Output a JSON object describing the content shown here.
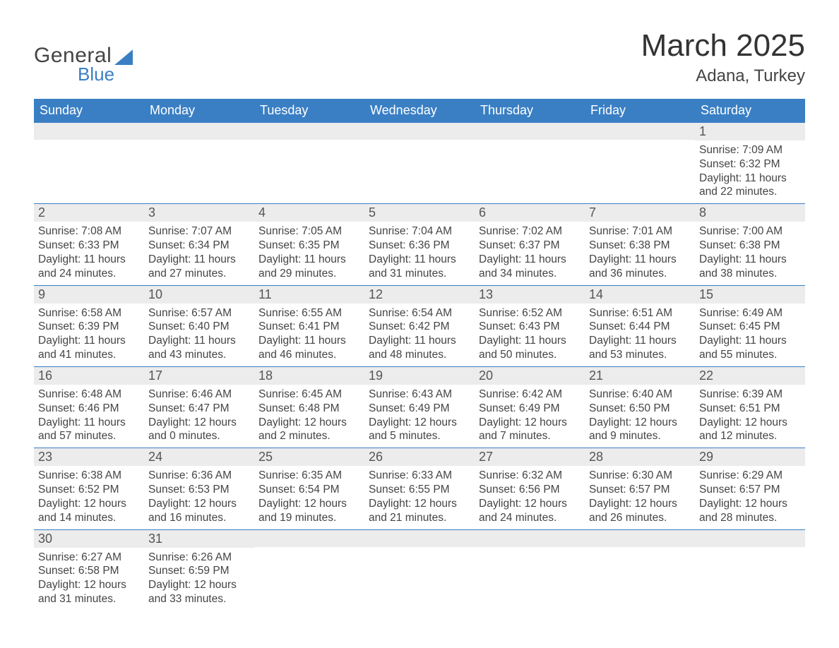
{
  "logo": {
    "word1": "General",
    "word2": "Blue"
  },
  "title": "March 2025",
  "location": "Adana, Turkey",
  "colors": {
    "header_bg": "#3a7fc4",
    "header_text": "#ffffff",
    "band_bg": "#ececec",
    "text": "#444444",
    "rule": "#3a7fc4"
  },
  "fonts": {
    "title_pt": 44,
    "location_pt": 24,
    "dow_pt": 18,
    "daynum_pt": 18,
    "body_pt": 15.5
  },
  "days_of_week": [
    "Sunday",
    "Monday",
    "Tuesday",
    "Wednesday",
    "Thursday",
    "Friday",
    "Saturday"
  ],
  "weeks": [
    [
      null,
      null,
      null,
      null,
      null,
      null,
      {
        "n": "1",
        "sunrise": "Sunrise: 7:09 AM",
        "sunset": "Sunset: 6:32 PM",
        "daylight": "Daylight: 11 hours and 22 minutes."
      }
    ],
    [
      {
        "n": "2",
        "sunrise": "Sunrise: 7:08 AM",
        "sunset": "Sunset: 6:33 PM",
        "daylight": "Daylight: 11 hours and 24 minutes."
      },
      {
        "n": "3",
        "sunrise": "Sunrise: 7:07 AM",
        "sunset": "Sunset: 6:34 PM",
        "daylight": "Daylight: 11 hours and 27 minutes."
      },
      {
        "n": "4",
        "sunrise": "Sunrise: 7:05 AM",
        "sunset": "Sunset: 6:35 PM",
        "daylight": "Daylight: 11 hours and 29 minutes."
      },
      {
        "n": "5",
        "sunrise": "Sunrise: 7:04 AM",
        "sunset": "Sunset: 6:36 PM",
        "daylight": "Daylight: 11 hours and 31 minutes."
      },
      {
        "n": "6",
        "sunrise": "Sunrise: 7:02 AM",
        "sunset": "Sunset: 6:37 PM",
        "daylight": "Daylight: 11 hours and 34 minutes."
      },
      {
        "n": "7",
        "sunrise": "Sunrise: 7:01 AM",
        "sunset": "Sunset: 6:38 PM",
        "daylight": "Daylight: 11 hours and 36 minutes."
      },
      {
        "n": "8",
        "sunrise": "Sunrise: 7:00 AM",
        "sunset": "Sunset: 6:38 PM",
        "daylight": "Daylight: 11 hours and 38 minutes."
      }
    ],
    [
      {
        "n": "9",
        "sunrise": "Sunrise: 6:58 AM",
        "sunset": "Sunset: 6:39 PM",
        "daylight": "Daylight: 11 hours and 41 minutes."
      },
      {
        "n": "10",
        "sunrise": "Sunrise: 6:57 AM",
        "sunset": "Sunset: 6:40 PM",
        "daylight": "Daylight: 11 hours and 43 minutes."
      },
      {
        "n": "11",
        "sunrise": "Sunrise: 6:55 AM",
        "sunset": "Sunset: 6:41 PM",
        "daylight": "Daylight: 11 hours and 46 minutes."
      },
      {
        "n": "12",
        "sunrise": "Sunrise: 6:54 AM",
        "sunset": "Sunset: 6:42 PM",
        "daylight": "Daylight: 11 hours and 48 minutes."
      },
      {
        "n": "13",
        "sunrise": "Sunrise: 6:52 AM",
        "sunset": "Sunset: 6:43 PM",
        "daylight": "Daylight: 11 hours and 50 minutes."
      },
      {
        "n": "14",
        "sunrise": "Sunrise: 6:51 AM",
        "sunset": "Sunset: 6:44 PM",
        "daylight": "Daylight: 11 hours and 53 minutes."
      },
      {
        "n": "15",
        "sunrise": "Sunrise: 6:49 AM",
        "sunset": "Sunset: 6:45 PM",
        "daylight": "Daylight: 11 hours and 55 minutes."
      }
    ],
    [
      {
        "n": "16",
        "sunrise": "Sunrise: 6:48 AM",
        "sunset": "Sunset: 6:46 PM",
        "daylight": "Daylight: 11 hours and 57 minutes."
      },
      {
        "n": "17",
        "sunrise": "Sunrise: 6:46 AM",
        "sunset": "Sunset: 6:47 PM",
        "daylight": "Daylight: 12 hours and 0 minutes."
      },
      {
        "n": "18",
        "sunrise": "Sunrise: 6:45 AM",
        "sunset": "Sunset: 6:48 PM",
        "daylight": "Daylight: 12 hours and 2 minutes."
      },
      {
        "n": "19",
        "sunrise": "Sunrise: 6:43 AM",
        "sunset": "Sunset: 6:49 PM",
        "daylight": "Daylight: 12 hours and 5 minutes."
      },
      {
        "n": "20",
        "sunrise": "Sunrise: 6:42 AM",
        "sunset": "Sunset: 6:49 PM",
        "daylight": "Daylight: 12 hours and 7 minutes."
      },
      {
        "n": "21",
        "sunrise": "Sunrise: 6:40 AM",
        "sunset": "Sunset: 6:50 PM",
        "daylight": "Daylight: 12 hours and 9 minutes."
      },
      {
        "n": "22",
        "sunrise": "Sunrise: 6:39 AM",
        "sunset": "Sunset: 6:51 PM",
        "daylight": "Daylight: 12 hours and 12 minutes."
      }
    ],
    [
      {
        "n": "23",
        "sunrise": "Sunrise: 6:38 AM",
        "sunset": "Sunset: 6:52 PM",
        "daylight": "Daylight: 12 hours and 14 minutes."
      },
      {
        "n": "24",
        "sunrise": "Sunrise: 6:36 AM",
        "sunset": "Sunset: 6:53 PM",
        "daylight": "Daylight: 12 hours and 16 minutes."
      },
      {
        "n": "25",
        "sunrise": "Sunrise: 6:35 AM",
        "sunset": "Sunset: 6:54 PM",
        "daylight": "Daylight: 12 hours and 19 minutes."
      },
      {
        "n": "26",
        "sunrise": "Sunrise: 6:33 AM",
        "sunset": "Sunset: 6:55 PM",
        "daylight": "Daylight: 12 hours and 21 minutes."
      },
      {
        "n": "27",
        "sunrise": "Sunrise: 6:32 AM",
        "sunset": "Sunset: 6:56 PM",
        "daylight": "Daylight: 12 hours and 24 minutes."
      },
      {
        "n": "28",
        "sunrise": "Sunrise: 6:30 AM",
        "sunset": "Sunset: 6:57 PM",
        "daylight": "Daylight: 12 hours and 26 minutes."
      },
      {
        "n": "29",
        "sunrise": "Sunrise: 6:29 AM",
        "sunset": "Sunset: 6:57 PM",
        "daylight": "Daylight: 12 hours and 28 minutes."
      }
    ],
    [
      {
        "n": "30",
        "sunrise": "Sunrise: 6:27 AM",
        "sunset": "Sunset: 6:58 PM",
        "daylight": "Daylight: 12 hours and 31 minutes."
      },
      {
        "n": "31",
        "sunrise": "Sunrise: 6:26 AM",
        "sunset": "Sunset: 6:59 PM",
        "daylight": "Daylight: 12 hours and 33 minutes."
      },
      null,
      null,
      null,
      null,
      null
    ]
  ]
}
